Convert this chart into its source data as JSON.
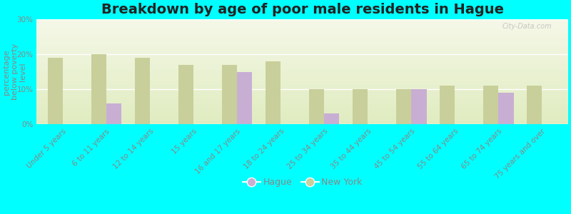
{
  "title": "Breakdown by age of poor male residents in Hague",
  "ylabel": "percentage\nbelow poverty\nlevel",
  "categories": [
    "Under 5 years",
    "6 to 11 years",
    "12 to 14 years",
    "15 years",
    "16 and 17 years",
    "18 to 24 years",
    "25 to 34 years",
    "35 to 44 years",
    "45 to 54 years",
    "55 to 64 years",
    "65 to 74 years",
    "75 years and over"
  ],
  "hague": [
    0,
    6,
    0,
    0,
    15,
    0,
    3,
    0,
    10,
    0,
    9,
    0
  ],
  "new_york": [
    19,
    20,
    19,
    17,
    17,
    18,
    10,
    10,
    10,
    11,
    11,
    11
  ],
  "hague_color": "#c9aed4",
  "new_york_color": "#c8cf9a",
  "bg_outer": "#00ffff",
  "ylim": [
    0,
    30
  ],
  "yticks": [
    0,
    10,
    20,
    30
  ],
  "ytick_labels": [
    "0%",
    "10%",
    "20%",
    "30%"
  ],
  "bar_width": 0.35,
  "title_fontsize": 14,
  "axis_label_fontsize": 8,
  "tick_fontsize": 7.5,
  "legend_fontsize": 9,
  "watermark": "City-Data.com",
  "text_color": "#888888"
}
